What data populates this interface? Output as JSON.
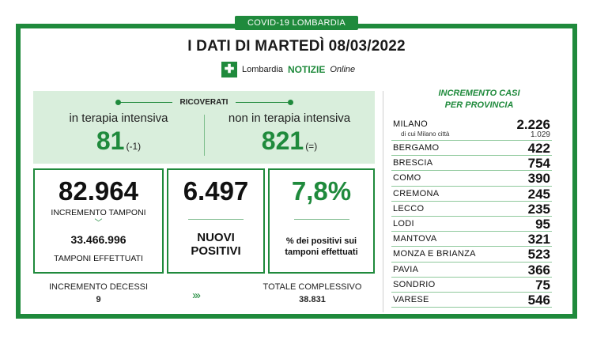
{
  "header": {
    "tag": "COVID-19 LOMBARDIA",
    "title": "I DATI DI MARTEDÌ 08/03/2022",
    "logo_brand1": "Lombardia",
    "logo_brand2": "NOTIZIE",
    "logo_brand3": "Online"
  },
  "ricoverati": {
    "label": "RICOVERATI",
    "intensiva_label": "in terapia intensiva",
    "intensiva_value": "81",
    "intensiva_var": "(-1)",
    "non_intensiva_label": "non in terapia intensiva",
    "non_intensiva_value": "821",
    "non_intensiva_var": "(=)"
  },
  "tamponi": {
    "incremento_value": "82.964",
    "incremento_label": "INCREMENTO TAMPONI",
    "effettuati_value": "33.466.996",
    "effettuati_label": "TAMPONI EFFETTUATI"
  },
  "positivi": {
    "value": "6.497",
    "label_line1": "NUOVI",
    "label_line2": "POSITIVI"
  },
  "percentuale": {
    "value": "7,8%",
    "label_line1": "% dei positivi sui",
    "label_line2": "tamponi effettuati"
  },
  "decessi": {
    "incremento_label": "INCREMENTO DECESSI",
    "incremento_value": "9",
    "totale_label": "TOTALE COMPLESSIVO",
    "totale_value": "38.831"
  },
  "province": {
    "title_line1": "INCREMENTO CASI",
    "title_line2": "PER PROVINCIA",
    "milano": {
      "name": "MILANO",
      "value": "2.226",
      "sub_label": "di cui Milano città",
      "sub_value": "1.029"
    },
    "items": [
      {
        "name": "BERGAMO",
        "value": "422"
      },
      {
        "name": "BRESCIA",
        "value": "754"
      },
      {
        "name": "COMO",
        "value": "390"
      },
      {
        "name": "CREMONA",
        "value": "245"
      },
      {
        "name": "LECCO",
        "value": "235"
      },
      {
        "name": "LODI",
        "value": "95"
      },
      {
        "name": "MANTOVA",
        "value": "321"
      },
      {
        "name": "MONZA E BRIANZA",
        "value": "523"
      },
      {
        "name": "PAVIA",
        "value": "366"
      },
      {
        "name": "SONDRIO",
        "value": "75"
      },
      {
        "name": "VARESE",
        "value": "546"
      }
    ]
  },
  "colors": {
    "accent": "#1f8a3c",
    "panel": "#d9eedc"
  },
  "icons": {
    "chevron": "chevron-down-icon",
    "arrows": "triple-chevron-right-icon"
  }
}
